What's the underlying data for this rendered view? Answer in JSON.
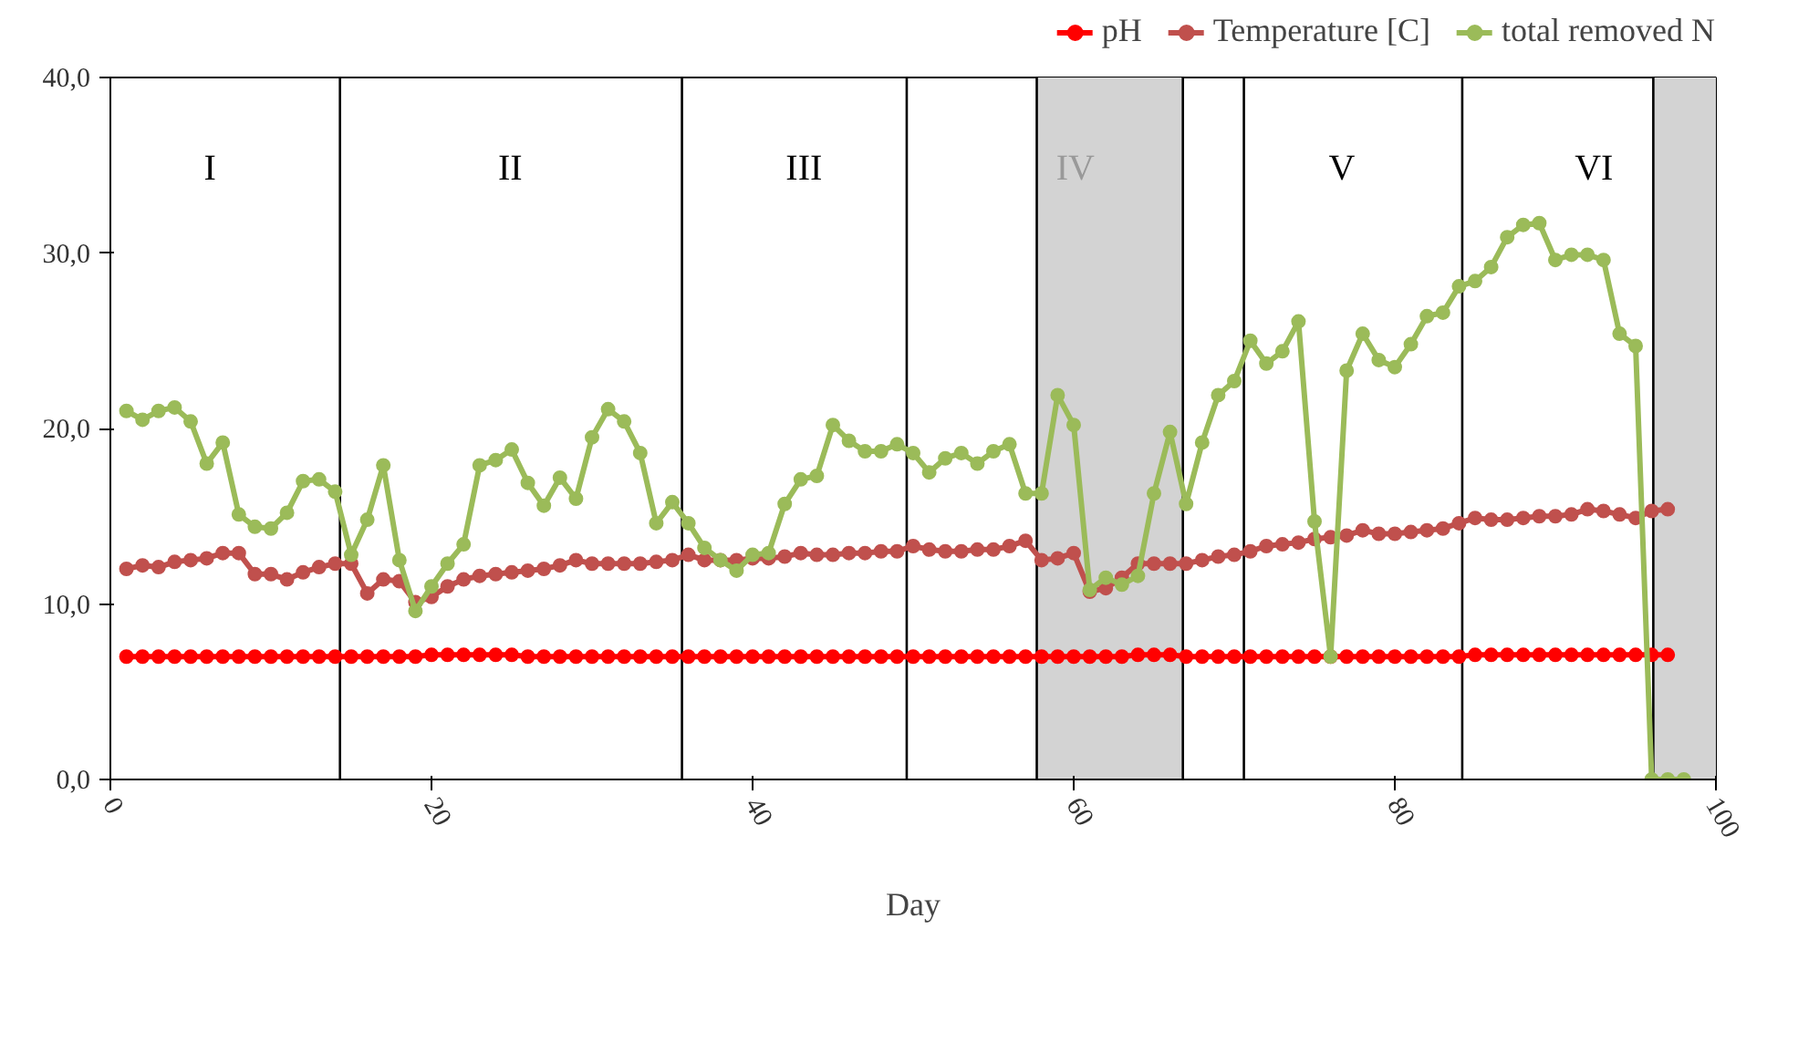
{
  "chart_data": {
    "type": "line",
    "xlabel": "Day",
    "marker": "circle",
    "legend": "top right",
    "grid": false,
    "xlim": [
      0,
      100
    ],
    "xticks": [
      0,
      20,
      40,
      60,
      80,
      100
    ],
    "ylim": [
      0,
      40
    ],
    "yticks": [
      {
        "value": 0,
        "label": "0,0"
      },
      {
        "value": 10,
        "label": "10,0"
      },
      {
        "value": 20,
        "label": "20,0"
      },
      {
        "value": 30,
        "label": "30,0"
      },
      {
        "value": 40,
        "label": "40,0"
      }
    ],
    "x": [
      1,
      2,
      3,
      4,
      5,
      6,
      7,
      8,
      9,
      10,
      11,
      12,
      13,
      14,
      15,
      16,
      17,
      18,
      19,
      20,
      21,
      22,
      23,
      24,
      25,
      26,
      27,
      28,
      29,
      30,
      31,
      32,
      33,
      34,
      35,
      36,
      37,
      38,
      39,
      40,
      41,
      42,
      43,
      44,
      45,
      46,
      47,
      48,
      49,
      50,
      51,
      52,
      53,
      54,
      55,
      56,
      57,
      58,
      59,
      60,
      61,
      62,
      63,
      64,
      65,
      66,
      67,
      68,
      69,
      70,
      71,
      72,
      73,
      74,
      75,
      76,
      77,
      78,
      79,
      80,
      81,
      82,
      83,
      84,
      85,
      86,
      87,
      88,
      89,
      90,
      91,
      92,
      93,
      94,
      95,
      96,
      97,
      98
    ],
    "series": [
      {
        "name": "pH",
        "color": "#ff0000",
        "values": [
          7.0,
          7.0,
          7.0,
          7.0,
          7.0,
          7.0,
          7.0,
          7.0,
          7.0,
          7.0,
          7.0,
          7.0,
          7.0,
          7.0,
          7.0,
          7.0,
          7.0,
          7.0,
          7.0,
          7.1,
          7.1,
          7.1,
          7.1,
          7.1,
          7.1,
          7.0,
          7.0,
          7.0,
          7.0,
          7.0,
          7.0,
          7.0,
          7.0,
          7.0,
          7.0,
          7.0,
          7.0,
          7.0,
          7.0,
          7.0,
          7.0,
          7.0,
          7.0,
          7.0,
          7.0,
          7.0,
          7.0,
          7.0,
          7.0,
          7.0,
          7.0,
          7.0,
          7.0,
          7.0,
          7.0,
          7.0,
          7.0,
          7.0,
          7.0,
          7.0,
          7.0,
          7.0,
          7.0,
          7.1,
          7.1,
          7.1,
          7.0,
          7.0,
          7.0,
          7.0,
          7.0,
          7.0,
          7.0,
          7.0,
          7.0,
          7.0,
          7.0,
          7.0,
          7.0,
          7.0,
          7.0,
          7.0,
          7.0,
          7.0,
          7.1,
          7.1,
          7.1,
          7.1,
          7.1,
          7.1,
          7.1,
          7.1,
          7.1,
          7.1,
          7.1,
          7.1,
          7.1,
          null
        ]
      },
      {
        "name": "Temperature [C]",
        "color": "#c0504d",
        "values": [
          12.0,
          12.2,
          12.1,
          12.4,
          12.5,
          12.6,
          12.9,
          12.9,
          11.7,
          11.7,
          11.4,
          11.8,
          12.1,
          12.3,
          12.3,
          10.6,
          11.4,
          11.3,
          10.1,
          10.4,
          11.0,
          11.4,
          11.6,
          11.7,
          11.8,
          11.9,
          12.0,
          12.2,
          12.5,
          12.3,
          12.3,
          12.3,
          12.3,
          12.4,
          12.5,
          12.8,
          12.5,
          12.5,
          12.5,
          12.6,
          12.6,
          12.7,
          12.9,
          12.8,
          12.8,
          12.9,
          12.9,
          13.0,
          13.0,
          13.3,
          13.1,
          13.0,
          13.0,
          13.1,
          13.1,
          13.3,
          13.6,
          12.5,
          12.6,
          12.9,
          10.7,
          10.9,
          11.5,
          12.3,
          12.3,
          12.3,
          12.3,
          12.5,
          12.7,
          12.8,
          13.0,
          13.3,
          13.4,
          13.5,
          13.7,
          13.8,
          13.9,
          14.2,
          14.0,
          14.0,
          14.1,
          14.2,
          14.3,
          14.6,
          14.9,
          14.8,
          14.8,
          14.9,
          15.0,
          15.0,
          15.1,
          15.4,
          15.3,
          15.1,
          14.9,
          15.3,
          15.4,
          null
        ]
      },
      {
        "name": "total removed N",
        "color": "#9bbb59",
        "values": [
          21.0,
          20.5,
          21.0,
          21.2,
          20.4,
          18.0,
          19.2,
          15.1,
          14.4,
          14.3,
          15.2,
          17.0,
          17.1,
          16.4,
          12.8,
          14.8,
          17.9,
          12.5,
          9.6,
          11.0,
          12.3,
          13.4,
          17.9,
          18.2,
          18.8,
          16.9,
          15.6,
          17.2,
          16.0,
          19.5,
          21.1,
          20.4,
          18.6,
          14.6,
          15.8,
          14.6,
          13.2,
          12.5,
          11.9,
          12.8,
          12.9,
          15.7,
          17.1,
          17.3,
          20.2,
          19.3,
          18.7,
          18.7,
          19.1,
          18.6,
          17.5,
          18.3,
          18.6,
          18.0,
          18.7,
          19.1,
          16.3,
          16.3,
          21.9,
          20.2,
          10.8,
          11.5,
          11.1,
          11.6,
          16.3,
          19.8,
          15.7,
          19.2,
          21.9,
          22.7,
          25.0,
          23.7,
          24.4,
          26.1,
          14.7,
          7.0,
          23.3,
          25.4,
          23.9,
          23.5,
          24.8,
          26.4,
          26.6,
          28.1,
          28.4,
          29.2,
          30.9,
          31.6,
          31.7,
          29.6,
          29.9,
          29.9,
          29.6,
          25.4,
          24.7,
          0,
          0,
          0
        ]
      }
    ],
    "ref_lines": [
      {
        "axis": "x",
        "value": 14.3,
        "color": "#000000"
      },
      {
        "axis": "x",
        "value": 35.6,
        "color": "#000000"
      },
      {
        "axis": "x",
        "value": 49.6,
        "color": "#000000"
      },
      {
        "axis": "x",
        "value": 57.7,
        "color": "#000000"
      },
      {
        "axis": "x",
        "value": 66.8,
        "color": "#000000"
      },
      {
        "axis": "x",
        "value": 70.6,
        "color": "#000000"
      },
      {
        "axis": "x",
        "value": 84.2,
        "color": "#000000"
      },
      {
        "axis": "x",
        "value": 96.1,
        "color": "#000000"
      }
    ],
    "bands": [
      {
        "axis": "x",
        "from": 57.7,
        "to": 66.8,
        "color": "#d3d3d3"
      },
      {
        "axis": "x",
        "from": 96.1,
        "to": 100,
        "color": "#d3d3d3"
      }
    ],
    "annotations": [
      "I",
      "II",
      "III",
      "IV",
      "V",
      "VI"
    ]
  }
}
